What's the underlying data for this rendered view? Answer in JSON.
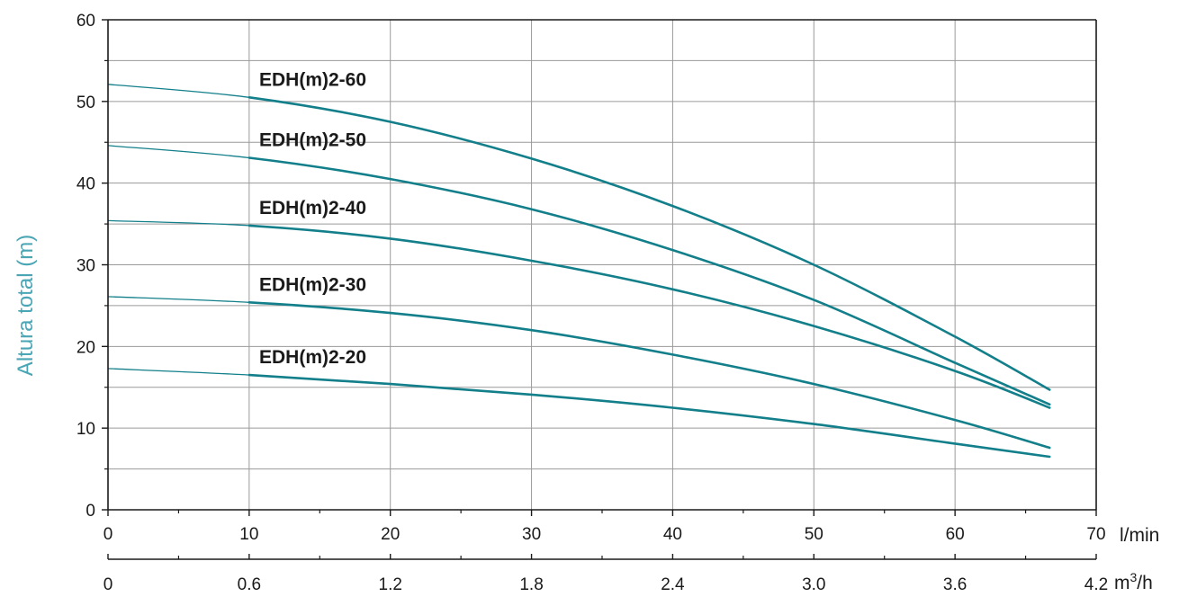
{
  "chart_data": {
    "type": "line",
    "ylabel": "Altura total (m)",
    "ylim": [
      0,
      60
    ],
    "yticks": [
      "0",
      "10",
      "20",
      "30",
      "40",
      "50",
      "60"
    ],
    "xlim": [
      0,
      70
    ],
    "xticks": [
      "0",
      "10",
      "20",
      "30",
      "40",
      "50",
      "60",
      "70"
    ],
    "xunit": "l/min",
    "x2lim": [
      0,
      4.2
    ],
    "x2ticks": [
      "0",
      "0.6",
      "1.2",
      "1.8",
      "2.4",
      "3.0",
      "3.6",
      "4.2"
    ],
    "x2unit_base": "m",
    "x2unit_sup": "3",
    "x2unit_tail": "/h",
    "grid": true,
    "series": [
      {
        "name": "EDH(m)2-60",
        "x": [
          0,
          10,
          20,
          30,
          40,
          50,
          60,
          66.7
        ],
        "values": [
          52.1,
          50.5,
          47.5,
          43.0,
          37.2,
          30.0,
          21.2,
          14.7
        ]
      },
      {
        "name": "EDH(m)2-50",
        "x": [
          0,
          10,
          20,
          30,
          40,
          50,
          60,
          66.7
        ],
        "values": [
          44.6,
          43.1,
          40.5,
          36.8,
          31.8,
          25.7,
          18.0,
          12.9
        ]
      },
      {
        "name": "EDH(m)2-40",
        "x": [
          0,
          10,
          20,
          30,
          40,
          50,
          60,
          66.7
        ],
        "values": [
          35.4,
          34.8,
          33.2,
          30.5,
          27.0,
          22.5,
          17.0,
          12.5
        ]
      },
      {
        "name": "EDH(m)2-30",
        "x": [
          0,
          10,
          20,
          30,
          40,
          50,
          60,
          66.7
        ],
        "values": [
          26.1,
          25.4,
          24.1,
          22.0,
          19.0,
          15.4,
          11.0,
          7.6
        ]
      },
      {
        "name": "EDH(m)2-20",
        "x": [
          0,
          10,
          20,
          30,
          40,
          50,
          60,
          66.7
        ],
        "values": [
          17.3,
          16.5,
          15.4,
          14.1,
          12.5,
          10.5,
          8.1,
          6.5
        ]
      }
    ],
    "colors": {
      "curve": "#127f8a",
      "ylabel": "#4aa6b5",
      "grid": "#9a9a9a",
      "axis": "#1a1a1a"
    }
  }
}
